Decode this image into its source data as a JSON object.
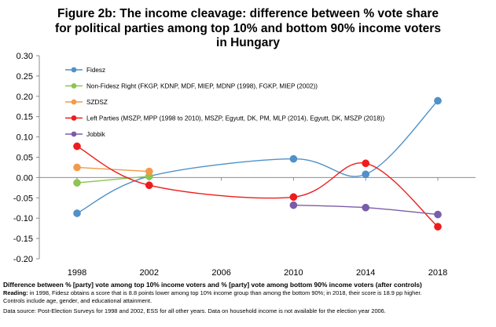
{
  "title_lines": [
    "Figure 2b: The income cleavage: difference between % vote share",
    "for political parties among top 10% and bottom 90% income voters",
    "in Hungary"
  ],
  "chart_data": {
    "type": "line",
    "x": [
      1998,
      2002,
      2006,
      2010,
      2014,
      2018
    ],
    "x_tick_labels": [
      "1998",
      "2002",
      "2006",
      "2010",
      "2014",
      "2018"
    ],
    "ylim": [
      -0.2,
      0.3
    ],
    "y_ticks": [
      0.3,
      0.25,
      0.2,
      0.15,
      0.1,
      0.05,
      0.0,
      -0.05,
      -0.1,
      -0.15,
      -0.2
    ],
    "y_tick_labels": [
      "0.30",
      "0.25",
      "0.20",
      "0.15",
      "0.10",
      "0.05",
      "0.00",
      "-0.05",
      "-0.10",
      "-0.15",
      "-0.20"
    ],
    "grid": false,
    "legend_position": "top-left",
    "series": [
      {
        "name": "Fidesz",
        "color": "#4F91C8",
        "points": [
          [
            1998,
            -0.088
          ],
          [
            2002,
            0.003
          ],
          [
            2010,
            0.046
          ],
          [
            2014,
            0.008
          ],
          [
            2018,
            0.189
          ]
        ]
      },
      {
        "name": "Non-Fidesz Right (FKGP, KDNP, MDF, MIEP, MDNP (1998), FGKP, MIEP (2002))",
        "color": "#8DC455",
        "points": [
          [
            1998,
            -0.013
          ],
          [
            2002,
            0.003
          ]
        ]
      },
      {
        "name": "SZDSZ",
        "color": "#F39A4A",
        "points": [
          [
            1998,
            0.025
          ],
          [
            2002,
            0.015
          ]
        ]
      },
      {
        "name": "Left Parties (MSZP, MPP (1998 to 2010), MSZP, Egyutt, DK, PM, MLP (2014), Egyutt, DK, MSZP (2018))",
        "color": "#EE1C1C",
        "points": [
          [
            1998,
            0.077
          ],
          [
            2002,
            -0.019
          ],
          [
            2010,
            -0.048
          ],
          [
            2014,
            0.035
          ],
          [
            2018,
            -0.121
          ]
        ]
      },
      {
        "name": "Jobbik",
        "color": "#7A5DA8",
        "points": [
          [
            2010,
            -0.068
          ],
          [
            2014,
            -0.074
          ],
          [
            2018,
            -0.091
          ]
        ]
      }
    ]
  },
  "footer": {
    "bold_line": "Difference between % [party] vote among top 10% income voters and % [party] vote among bottom 90% income voters (after controls)",
    "reading_label": "Reading:",
    "reading_text": " in 1998, Fidesz obtains a score that is 8.8 points lower among top 10% income group than among the bottom 90%; in 2018, their score is 18.9 pp higher.",
    "controls_text": "Controls include age, gender, and educational attainment.",
    "source_text": "Data source: Post-Election Surveys for 1998 and 2002, ESS for all other years. Data on household income is not available for the election year 2006."
  }
}
